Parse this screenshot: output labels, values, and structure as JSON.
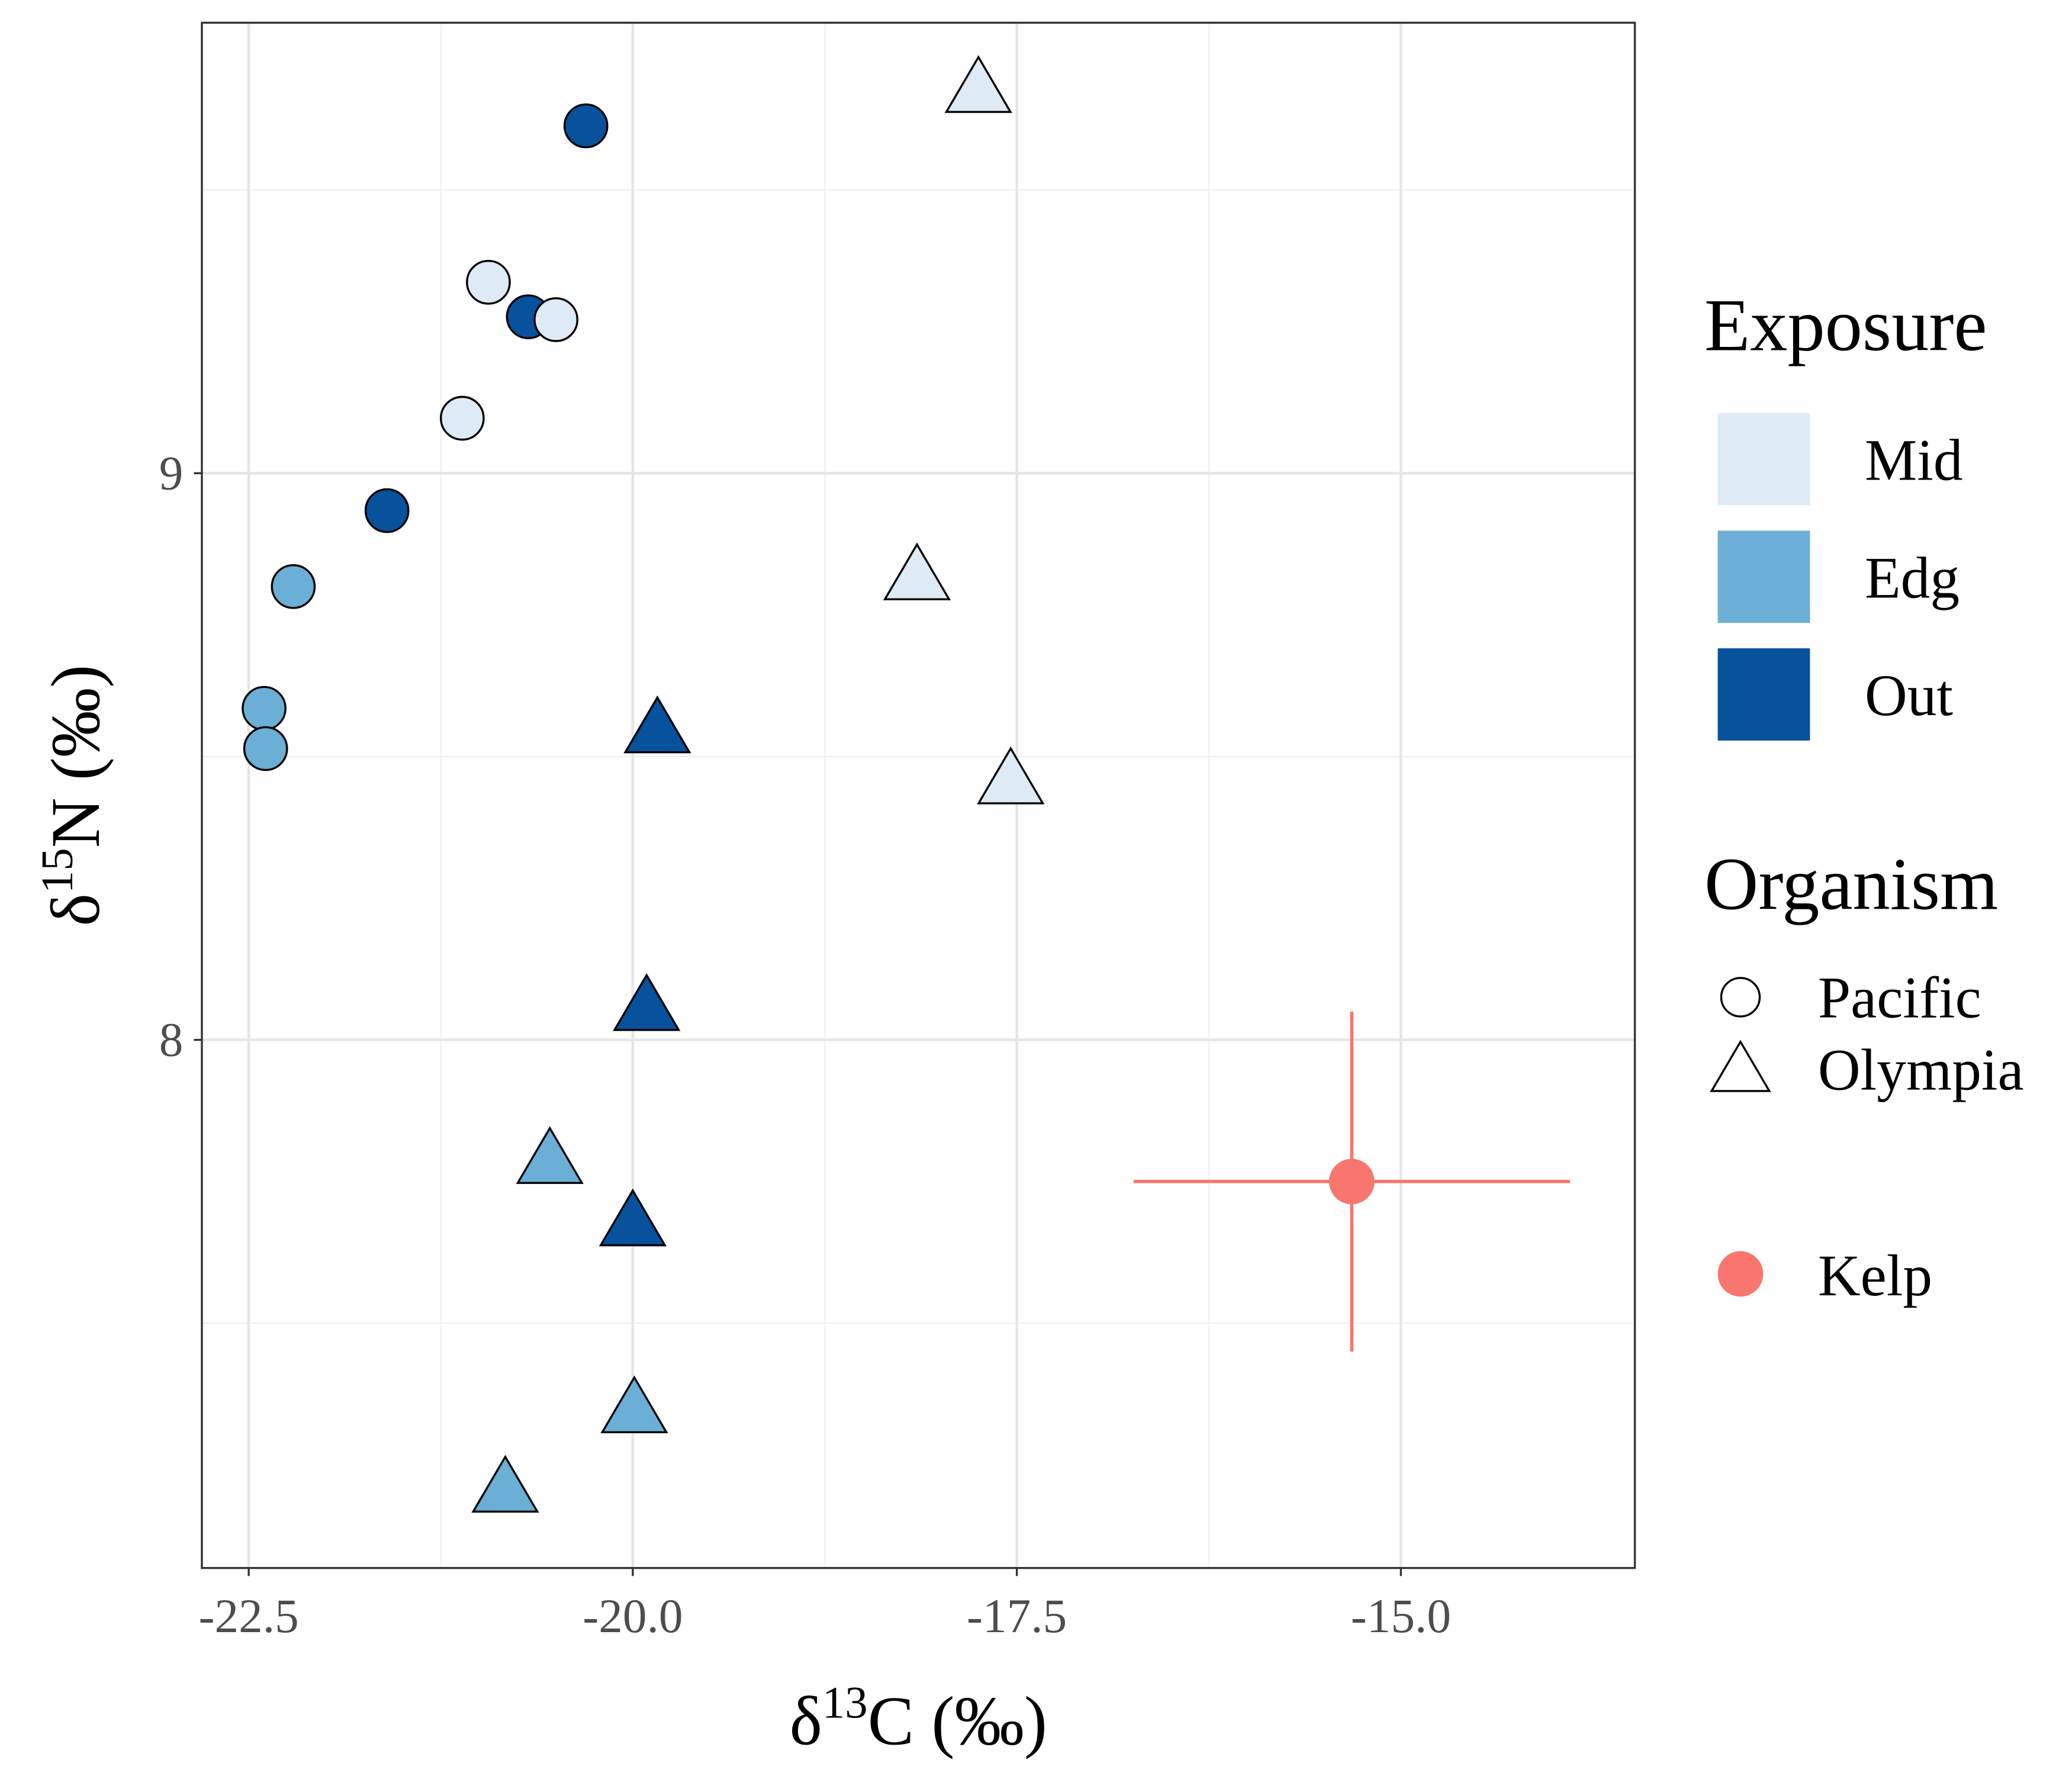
{
  "chart_data": {
    "type": "scatter",
    "xlabel": {
      "prefix": "δ",
      "sup": "13",
      "suffix": "C (‰)"
    },
    "ylabel": {
      "prefix": "δ",
      "sup": "15",
      "suffix": "N (‰)"
    },
    "xlim": [
      -22.805,
      -13.477
    ],
    "ylim": [
      7.068,
      9.795
    ],
    "xticks": [
      -22.5,
      {
        "value": -20,
        "label": "-20.0"
      },
      -17.5,
      {
        "value": -15,
        "label": "-15.0"
      }
    ],
    "yticks": [
      8,
      9
    ],
    "xminor": [
      -21.25,
      -18.75,
      -16.25
    ],
    "yminor": [
      7.5,
      8.5,
      9.5
    ],
    "grid": true,
    "legend": {
      "exposure": {
        "title": "Exposure",
        "items": [
          {
            "label": "Mid",
            "color": "#deebf7"
          },
          {
            "label": "Edg",
            "color": "#6baed6"
          },
          {
            "label": "Out",
            "color": "#08519c"
          }
        ]
      },
      "organism": {
        "title": "Organism",
        "items": [
          {
            "label": "Pacific",
            "shape": "circle"
          },
          {
            "label": "Olympia",
            "shape": "triangle"
          }
        ]
      }
    },
    "series": [
      {
        "exposure": "Out",
        "organism": "Pacific",
        "x": [
          -20.305,
          -20.68,
          -21.6
        ],
        "y": [
          9.613,
          9.276,
          8.934
        ]
      },
      {
        "exposure": "Mid",
        "organism": "Pacific",
        "x": [
          -20.94,
          -20.5,
          -21.11
        ],
        "y": [
          9.337,
          9.271,
          9.097
        ]
      },
      {
        "exposure": "Edg",
        "organism": "Pacific",
        "x": [
          -22.21,
          -22.4,
          -22.39
        ],
        "y": [
          8.8,
          8.585,
          8.514
        ]
      },
      {
        "exposure": "Mid",
        "organism": "Olympia",
        "x": [
          -17.75,
          -18.15,
          -17.54
        ],
        "y": [
          9.68,
          8.82,
          8.46
        ]
      },
      {
        "exposure": "Out",
        "organism": "Olympia",
        "x": [
          -19.84,
          -19.91,
          -20.0
        ],
        "y": [
          8.55,
          8.06,
          7.68
        ]
      },
      {
        "exposure": "Edg",
        "organism": "Olympia",
        "x": [
          -20.54,
          -19.99,
          -20.83
        ],
        "y": [
          7.79,
          7.35,
          7.21
        ]
      }
    ],
    "kelp": {
      "name": "Kelp",
      "color": "#f8766d",
      "x": [
        -15.32
      ],
      "y": [
        7.75
      ],
      "xerr": [
        1.42
      ],
      "yerr": [
        0.3
      ]
    }
  }
}
